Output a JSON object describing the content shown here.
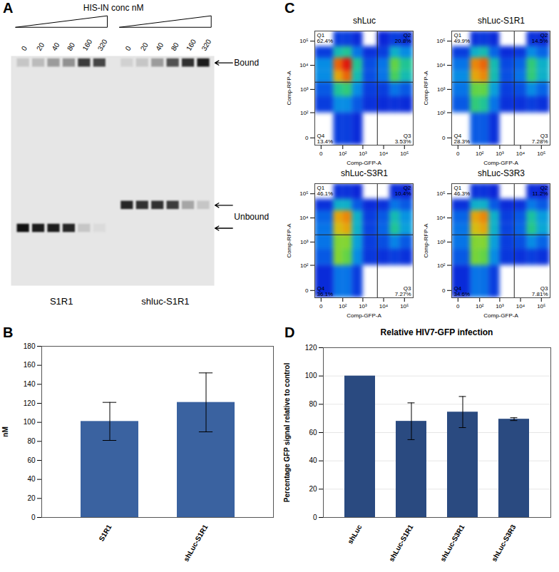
{
  "chart_data": [
    {
      "type": "gel",
      "panel": "A",
      "title": "HIS-IN conc nM",
      "categories": [
        0,
        20,
        40,
        80,
        160,
        320
      ],
      "groups": [
        "S1R1",
        "shluc-S1R1"
      ],
      "bands": [
        {
          "name": "Bound",
          "values": [
            [
              0.15,
              0.2,
              0.35,
              0.4,
              0.8,
              0.75
            ],
            [
              0.1,
              0.15,
              0.35,
              0.7,
              0.85,
              0.95
            ]
          ]
        },
        {
          "name": "Unbound",
          "values": [
            [
              1,
              0.95,
              0.95,
              0.9,
              0.15,
              0.05
            ],
            [
              0.9,
              0.85,
              0.85,
              0.8,
              0.3,
              0.15
            ]
          ]
        }
      ]
    },
    {
      "type": "bar",
      "panel": "B",
      "categories": [
        "S1R1",
        "shLuc-S1R1"
      ],
      "values": [
        101,
        121
      ],
      "errors": [
        20,
        31
      ],
      "ylabel": "nM",
      "ylim": [
        0,
        180
      ],
      "yticks": [
        0,
        20,
        40,
        60,
        80,
        100,
        120,
        140,
        160,
        180
      ],
      "color": "#3a62a0",
      "grid": false
    },
    {
      "type": "density",
      "panel": "C",
      "log": true,
      "xlabel": "Comp-GFP-A",
      "ylabel": "Comp-RFP-A",
      "xlim": [
        -10,
        262144
      ],
      "ylim": [
        -10,
        262144
      ],
      "xticks": [
        0,
        {
          "value": 100,
          "label": "10²"
        },
        {
          "value": 1000,
          "label": "10³"
        },
        {
          "value": 10000,
          "label": "10⁴"
        },
        {
          "value": 100000,
          "label": "10⁵"
        }
      ],
      "yticks": [
        0,
        {
          "value": 100,
          "label": "10²"
        },
        {
          "value": 1000,
          "label": "10³"
        },
        {
          "value": 10000,
          "label": "10⁴"
        },
        {
          "value": 100000,
          "label": "10⁵"
        }
      ],
      "x_bins": [
        -10,
        30,
        100,
        300,
        1000,
        5000,
        20000,
        60000,
        262144
      ],
      "y_bins": [
        -10,
        100,
        500,
        2000,
        6000,
        20000,
        60000,
        262144
      ],
      "gate": {
        "x": 5000,
        "y": 2000
      },
      "density_lim": [
        0,
        1
      ],
      "panels": [
        {
          "title": "shLuc",
          "quadrants": [
            {
              "name": "Q1",
              "value": 62.4,
              "label": "62.4%"
            },
            {
              "name": "Q2",
              "value": 20.8,
              "label": "20.8%"
            },
            {
              "name": "Q3",
              "value": 3.53,
              "label": "3.53%"
            },
            {
              "name": "Q4",
              "value": 13.4,
              "label": "13.4%"
            }
          ],
          "density": [
            [
              0,
              0.05,
              0.05,
              0.02,
              0,
              0,
              0,
              0
            ],
            [
              0.05,
              0.2,
              0.2,
              0.1,
              0.03,
              0.02,
              0.03,
              0.02
            ],
            [
              0.1,
              0.4,
              0.45,
              0.2,
              0.05,
              0.05,
              0.15,
              0.1
            ],
            [
              0.2,
              0.8,
              0.9,
              0.35,
              0.08,
              0.15,
              0.5,
              0.35
            ],
            [
              0.2,
              0.9,
              1,
              0.4,
              0.08,
              0.15,
              0.55,
              0.4
            ],
            [
              0.05,
              0.35,
              0.4,
              0.15,
              0.03,
              0.05,
              0.3,
              0.2
            ],
            [
              0,
              0.05,
              0.05,
              0.02,
              0,
              0.01,
              0.05,
              0.03
            ]
          ]
        },
        {
          "title": "shLuc-S1R1",
          "quadrants": [
            {
              "name": "Q1",
              "value": 49.9,
              "label": "49.9%"
            },
            {
              "name": "Q2",
              "value": 14.5,
              "label": "14.5%"
            },
            {
              "name": "Q3",
              "value": 7.28,
              "label": "7.28%"
            },
            {
              "name": "Q4",
              "value": 28.3,
              "label": "28.3%"
            }
          ],
          "density": [
            [
              0,
              0.1,
              0.1,
              0.03,
              0,
              0,
              0,
              0
            ],
            [
              0.1,
              0.45,
              0.4,
              0.15,
              0.03,
              0.03,
              0.05,
              0.03
            ],
            [
              0.15,
              0.55,
              0.55,
              0.25,
              0.05,
              0.08,
              0.2,
              0.12
            ],
            [
              0.2,
              0.8,
              0.85,
              0.35,
              0.08,
              0.15,
              0.45,
              0.3
            ],
            [
              0.15,
              0.85,
              0.9,
              0.35,
              0.07,
              0.12,
              0.45,
              0.3
            ],
            [
              0.05,
              0.3,
              0.35,
              0.12,
              0.02,
              0.04,
              0.2,
              0.12
            ],
            [
              0,
              0.03,
              0.04,
              0.02,
              0,
              0,
              0.03,
              0.02
            ]
          ]
        },
        {
          "title": "shLuc-S3R1",
          "quadrants": [
            {
              "name": "Q1",
              "value": 46.1,
              "label": "46.1%"
            },
            {
              "name": "Q2",
              "value": 10.4,
              "label": "10.4%"
            },
            {
              "name": "Q3",
              "value": 7.27,
              "label": "7.27%"
            },
            {
              "name": "Q4",
              "value": 36.1,
              "label": "36.1%"
            }
          ],
          "density": [
            [
              0.02,
              0.15,
              0.15,
              0.05,
              0,
              0,
              0,
              0
            ],
            [
              0.1,
              0.6,
              0.55,
              0.2,
              0.04,
              0.03,
              0.05,
              0.03
            ],
            [
              0.15,
              0.6,
              0.6,
              0.25,
              0.05,
              0.08,
              0.18,
              0.1
            ],
            [
              0.15,
              0.75,
              0.8,
              0.3,
              0.06,
              0.12,
              0.4,
              0.25
            ],
            [
              0.12,
              0.8,
              0.85,
              0.3,
              0.05,
              0.1,
              0.35,
              0.22
            ],
            [
              0.03,
              0.3,
              0.3,
              0.1,
              0.02,
              0.03,
              0.15,
              0.1
            ],
            [
              0,
              0.03,
              0.03,
              0.01,
              0,
              0,
              0.02,
              0.01
            ]
          ]
        },
        {
          "title": "shLuc-S3R3",
          "quadrants": [
            {
              "name": "Q1",
              "value": 46.3,
              "label": "46.3%"
            },
            {
              "name": "Q2",
              "value": 11.2,
              "label": "11.2%"
            },
            {
              "name": "Q3",
              "value": 7.81,
              "label": "7.81%"
            },
            {
              "name": "Q4",
              "value": 34.6,
              "label": "34.6%"
            }
          ],
          "density": [
            [
              0.02,
              0.15,
              0.14,
              0.05,
              0,
              0,
              0,
              0
            ],
            [
              0.1,
              0.58,
              0.55,
              0.2,
              0.04,
              0.03,
              0.05,
              0.03
            ],
            [
              0.15,
              0.6,
              0.6,
              0.25,
              0.05,
              0.08,
              0.2,
              0.12
            ],
            [
              0.15,
              0.75,
              0.8,
              0.3,
              0.06,
              0.12,
              0.42,
              0.27
            ],
            [
              0.12,
              0.8,
              0.85,
              0.3,
              0.05,
              0.1,
              0.38,
              0.24
            ],
            [
              0.03,
              0.3,
              0.3,
              0.1,
              0.02,
              0.03,
              0.16,
              0.1
            ],
            [
              0,
              0.03,
              0.03,
              0.01,
              0,
              0,
              0.02,
              0.01
            ]
          ]
        }
      ]
    },
    {
      "type": "bar",
      "panel": "D",
      "title": "Relative HIV7-GFP infection",
      "categories": [
        "shLuc",
        "shLuc-S1R1",
        "shLuc-S3R1",
        "shLuc-S3R3"
      ],
      "values": [
        100,
        68,
        74.5,
        69.5
      ],
      "errors": [
        0,
        13,
        11,
        1
      ],
      "ylabel": "Percentage GFP signal relative to control",
      "ylim": [
        0,
        120
      ],
      "yticks": [
        0,
        20,
        40,
        60,
        80,
        100,
        120
      ],
      "color": "#2a4a80",
      "grid": true
    }
  ]
}
